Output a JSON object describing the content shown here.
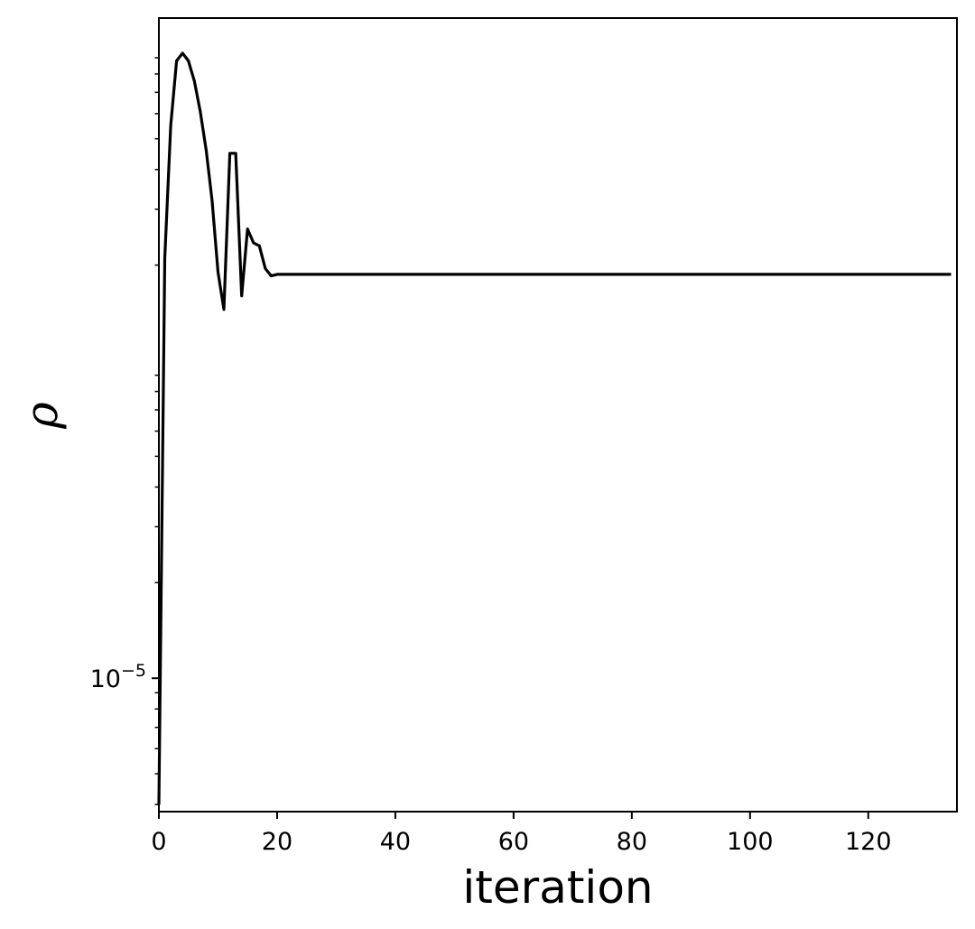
{
  "chart_data": {
    "type": "line",
    "title": "",
    "xlabel": "iteration",
    "ylabel": "ρ",
    "yscale": "log",
    "xlim": [
      0,
      135
    ],
    "ylim": [
      3.8e-06,
      0.0012
    ],
    "grid": false,
    "x_ticks": [
      0,
      20,
      40,
      60,
      80,
      100,
      120
    ],
    "x_tick_labels": [
      "0",
      "20",
      "40",
      "60",
      "80",
      "100",
      "120"
    ],
    "y_major_ticks": [
      1e-05
    ],
    "y_major_tick_labels": [
      {
        "base": "10",
        "exp": "−5"
      }
    ],
    "y_minor_ticks": [
      4e-06,
      5e-06,
      6e-06,
      7e-06,
      8e-06,
      9e-06,
      2e-05,
      3e-05,
      4e-05,
      5e-05,
      6e-05,
      7e-05,
      8e-05,
      9e-05,
      0.0002,
      0.0003,
      0.0004,
      0.0005,
      0.0006,
      0.0007,
      0.0008,
      0.0009
    ],
    "line_color": "#000000",
    "series": [
      {
        "x": [
          0,
          1,
          2,
          3,
          4,
          5,
          6,
          7,
          8,
          9,
          10,
          11,
          12,
          13,
          14,
          15,
          16,
          17,
          18,
          19,
          20,
          25,
          30,
          40,
          50,
          60,
          70,
          80,
          90,
          100,
          110,
          120,
          130,
          134
        ],
        "y": [
          4e-06,
          0.00021,
          0.00055,
          0.00088,
          0.00093,
          0.00088,
          0.00076,
          0.00061,
          0.00046,
          0.00032,
          0.00019,
          0.000145,
          0.00045,
          0.00045,
          0.00016,
          0.00026,
          0.000235,
          0.00023,
          0.000195,
          0.000185,
          0.000187,
          0.000187,
          0.000187,
          0.000187,
          0.000187,
          0.000187,
          0.000187,
          0.000187,
          0.000187,
          0.000187,
          0.000187,
          0.000187,
          0.000187,
          0.000187
        ]
      }
    ]
  }
}
